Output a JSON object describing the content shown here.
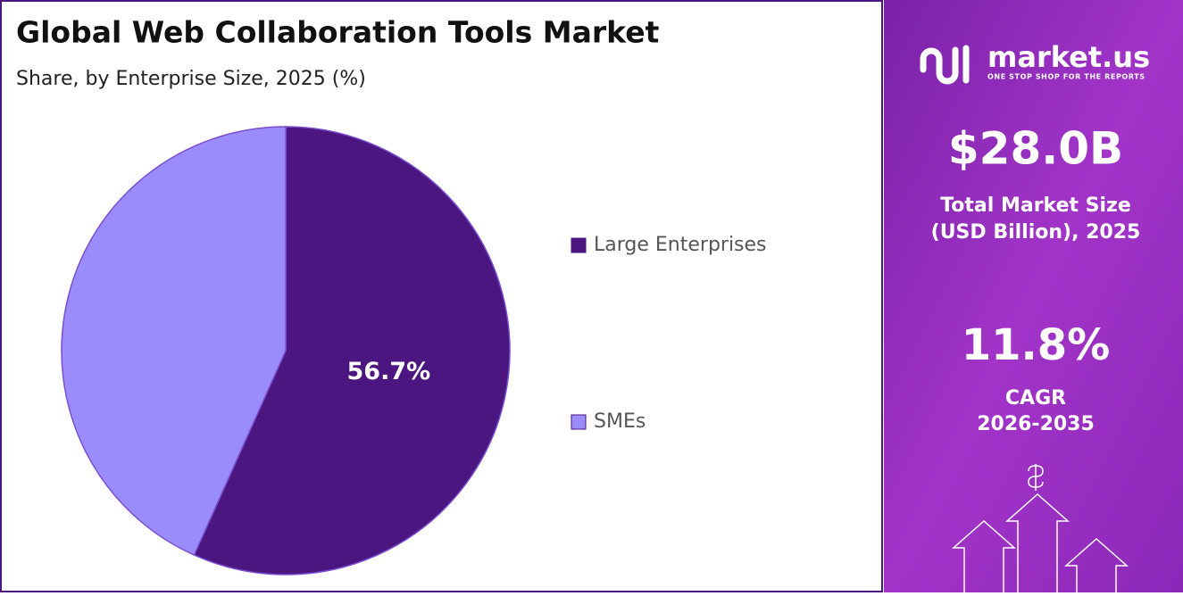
{
  "chart_data": {
    "type": "pie",
    "title": "Global Web Collaboration Tools Market",
    "subtitle": "Share, by Enterprise Size, 2025 (%)",
    "categories": [
      "Large Enterprises",
      "SMEs"
    ],
    "values": [
      56.7,
      43.3
    ],
    "value_labels": [
      "56.7%",
      null
    ],
    "colors": [
      "#4b1680",
      "#9b8cfc"
    ],
    "legend": "right"
  },
  "panel": {
    "brand": "market.us",
    "tagline": "ONE STOP SHOP FOR THE REPORTS",
    "market_size": "$28.0B",
    "market_size_label": [
      "Total Market Size",
      "(USD Billion), 2025"
    ],
    "cagr": "11.8%",
    "cagr_label": [
      "CAGR",
      "2026-2035"
    ]
  }
}
